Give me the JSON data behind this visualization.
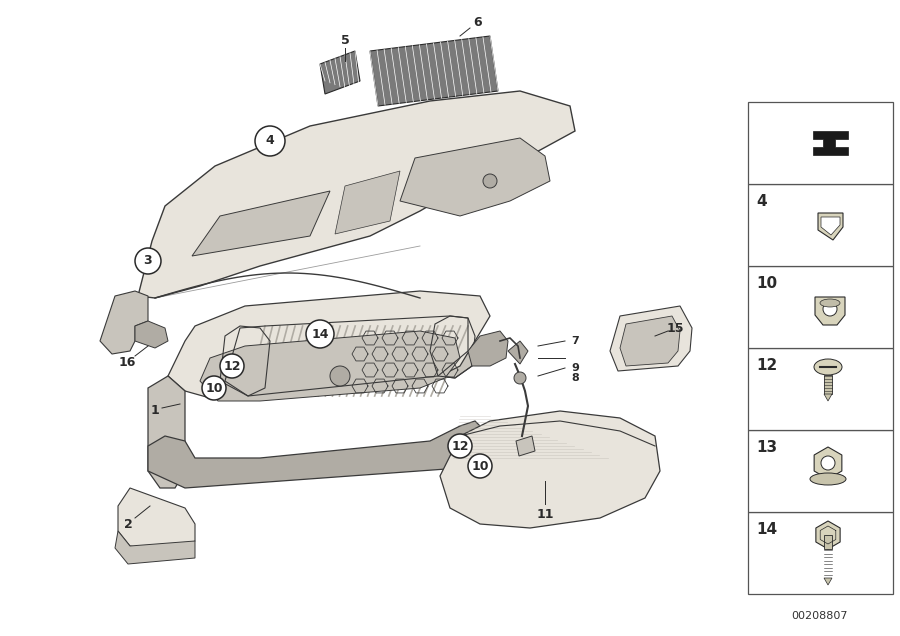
{
  "bg_color": "#ffffff",
  "fig_width": 9.0,
  "fig_height": 6.36,
  "diagram_number": "00208807",
  "line_color": "#2a2a2a",
  "part_color": "#e8e4dc",
  "part_edge": "#3a3a3a",
  "dark_part": "#b0aca4",
  "shadow_color": "#c8c4bc"
}
